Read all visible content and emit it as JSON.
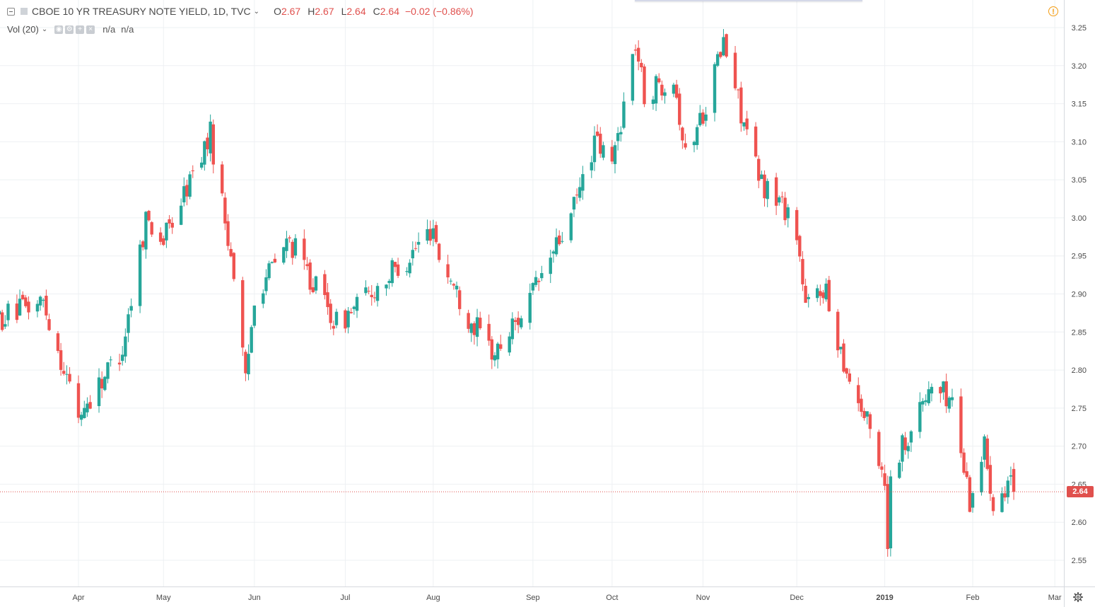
{
  "legend": {
    "symbol": "CBOE 10 YR TREASURY NOTE YIELD, 1D, TVC",
    "o_label": "O",
    "o_value": "2.67",
    "h_label": "H",
    "h_value": "2.67",
    "l_label": "L",
    "l_value": "2.64",
    "c_label": "C",
    "c_value": "2.64",
    "change": "−0.02 (−0.86%)"
  },
  "volume": {
    "label": "Vol (20)",
    "value1": "n/a",
    "value2": "n/a"
  },
  "colors": {
    "up": "#26a69a",
    "down": "#ef5350",
    "grid": "#eef0f3",
    "axis_text": "#4a4a4a",
    "price_line": "#e0504d",
    "background": "#ffffff"
  },
  "icons": [
    "collapse-icon",
    "warning-icon",
    "settings-gear-icon",
    "chevron-down-icon"
  ],
  "chart_data": {
    "type": "candlestick",
    "series_name": "CBOE 10 YR TREASURY NOTE YIELD",
    "interval": "1D",
    "y_ticks": [
      "3.25",
      "3.20",
      "3.15",
      "3.10",
      "3.05",
      "3.00",
      "2.95",
      "2.90",
      "2.85",
      "2.80",
      "2.75",
      "2.70",
      "2.65",
      "2.60",
      "2.55"
    ],
    "ylim": [
      2.51,
      3.27
    ],
    "x_ticks": [
      {
        "label": "Apr",
        "date": "2018-04-02",
        "bold": false
      },
      {
        "label": "May",
        "date": "2018-05-01",
        "bold": false
      },
      {
        "label": "Jun",
        "date": "2018-06-01",
        "bold": false
      },
      {
        "label": "Jul",
        "date": "2018-07-02",
        "bold": false
      },
      {
        "label": "Aug",
        "date": "2018-08-01",
        "bold": false
      },
      {
        "label": "Sep",
        "date": "2018-09-04",
        "bold": false
      },
      {
        "label": "Oct",
        "date": "2018-10-01",
        "bold": false
      },
      {
        "label": "Nov",
        "date": "2018-11-01",
        "bold": false
      },
      {
        "label": "Dec",
        "date": "2018-12-03",
        "bold": false
      },
      {
        "label": "2019",
        "date": "2019-01-02",
        "bold": true
      },
      {
        "label": "Feb",
        "date": "2019-02-01",
        "bold": false
      },
      {
        "label": "Mar",
        "date": "2019-03-01",
        "bold": false
      }
    ],
    "last_price": "2.64",
    "month_anchors": [
      [
        "2018-03-01",
        2.86
      ],
      [
        "2018-03-21",
        2.89
      ],
      [
        "2018-04-02",
        2.74
      ],
      [
        "2018-04-17",
        2.83
      ],
      [
        "2018-04-25",
        3.0
      ],
      [
        "2018-05-01",
        2.97
      ],
      [
        "2018-05-17",
        3.11
      ],
      [
        "2018-05-25",
        2.93
      ],
      [
        "2018-05-29",
        2.78
      ],
      [
        "2018-06-01",
        2.9
      ],
      [
        "2018-06-13",
        2.97
      ],
      [
        "2018-06-29",
        2.86
      ],
      [
        "2018-07-02",
        2.87
      ],
      [
        "2018-07-24",
        2.95
      ],
      [
        "2018-08-01",
        2.99
      ],
      [
        "2018-08-03",
        2.95
      ],
      [
        "2018-08-13",
        2.87
      ],
      [
        "2018-08-22",
        2.82
      ],
      [
        "2018-09-04",
        2.9
      ],
      [
        "2018-09-17",
        3.0
      ],
      [
        "2018-09-25",
        3.1
      ],
      [
        "2018-10-01",
        3.07
      ],
      [
        "2018-10-09",
        3.23
      ],
      [
        "2018-10-12",
        3.16
      ],
      [
        "2018-10-22",
        3.19
      ],
      [
        "2018-10-26",
        3.08
      ],
      [
        "2018-11-01",
        3.14
      ],
      [
        "2018-11-08",
        3.23
      ],
      [
        "2018-11-20",
        3.05
      ],
      [
        "2018-11-30",
        3.01
      ],
      [
        "2018-12-03",
        2.98
      ],
      [
        "2018-12-06",
        2.88
      ],
      [
        "2018-12-12",
        2.91
      ],
      [
        "2018-12-20",
        2.8
      ],
      [
        "2018-12-28",
        2.72
      ],
      [
        "2019-01-02",
        2.66
      ],
      [
        "2019-01-03",
        2.56
      ],
      [
        "2019-01-04",
        2.67
      ],
      [
        "2019-01-18",
        2.78
      ],
      [
        "2019-01-25",
        2.76
      ],
      [
        "2019-01-31",
        2.63
      ],
      [
        "2019-02-05",
        2.7
      ],
      [
        "2019-02-08",
        2.63
      ],
      [
        "2019-02-14",
        2.66
      ],
      [
        "2019-02-15",
        2.64
      ]
    ]
  }
}
